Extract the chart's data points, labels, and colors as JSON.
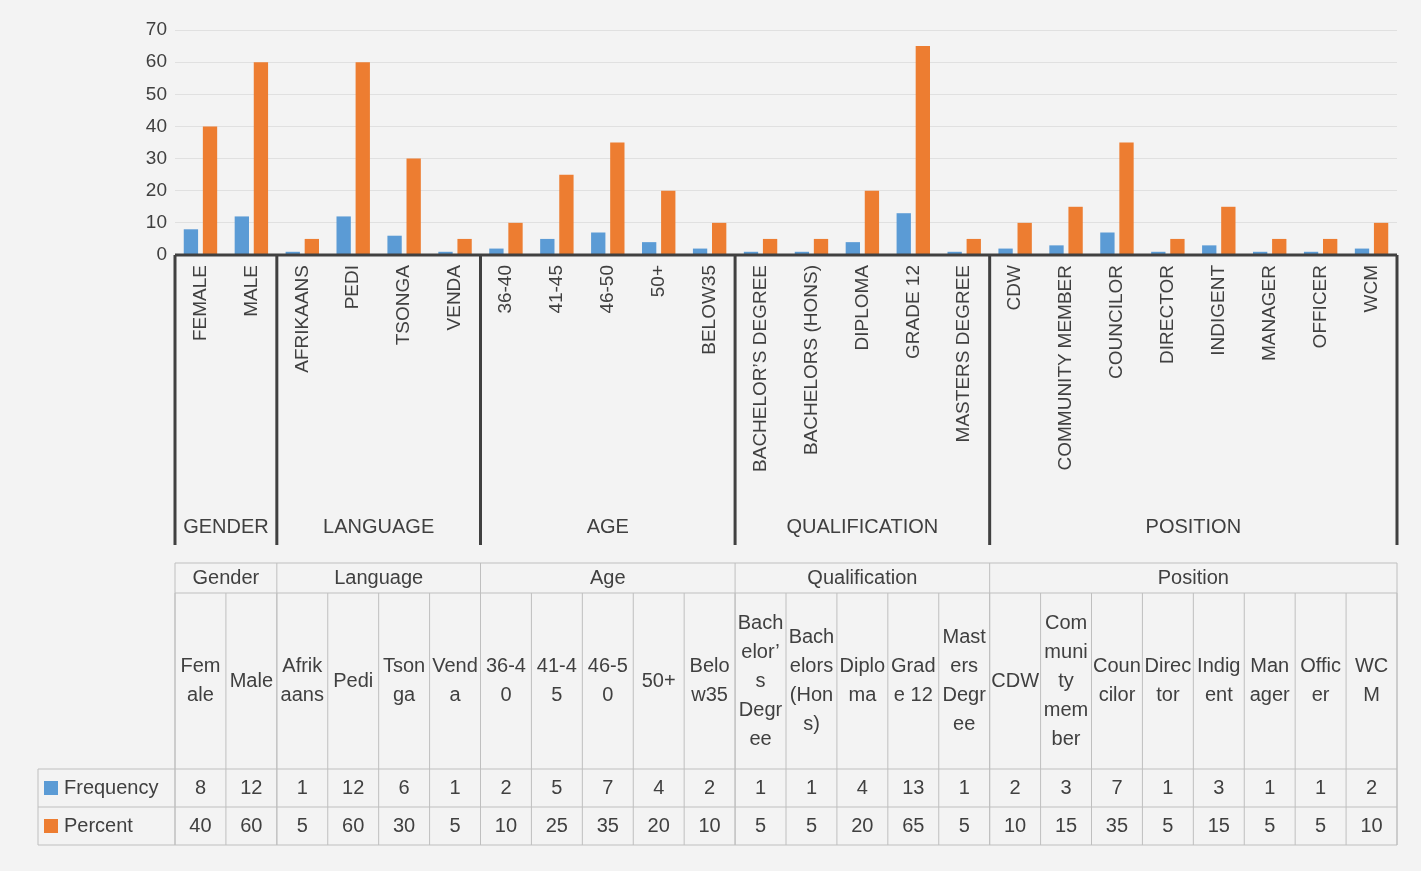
{
  "chart_data": {
    "type": "bar",
    "categories": [
      "FEMALE",
      "MALE",
      "AFRIKAANS",
      "PEDI",
      "TSONGA",
      "VENDA",
      "36-40",
      "41-45",
      "46-50",
      "50+",
      "BELOW35",
      "BACHELOR’S DEGREE",
      "BACHELORS (HONS)",
      "DIPLOMA",
      "GRADE 12",
      "MASTERS DEGREE",
      "CDW",
      "COMMUNITY MEMBER",
      "COUNCILOR",
      "DIRECTOR",
      "INDIGENT",
      "MANAGER",
      "OFFICER",
      "WCM"
    ],
    "series": [
      {
        "name": "Frequency",
        "color": "#5b9bd5",
        "values": [
          8,
          12,
          1,
          12,
          6,
          1,
          2,
          5,
          7,
          4,
          2,
          1,
          1,
          4,
          13,
          1,
          2,
          3,
          7,
          1,
          3,
          1,
          1,
          2
        ]
      },
      {
        "name": "Percent",
        "color": "#ed7d31",
        "values": [
          40,
          60,
          5,
          60,
          30,
          5,
          10,
          25,
          35,
          20,
          10,
          5,
          5,
          20,
          65,
          5,
          10,
          15,
          35,
          5,
          15,
          5,
          5,
          10
        ]
      }
    ],
    "ylim": [
      0,
      70
    ],
    "yticks": [
      0,
      10,
      20,
      30,
      40,
      50,
      60,
      70
    ],
    "grid": "y",
    "legend": "bottom",
    "data_labels": true,
    "annotations": [
      "GENDER",
      "LANGUAGE",
      "AGE",
      "QUALIFICATION",
      "POSITION",
      "Gender",
      "Language",
      "Age",
      "Qualification",
      "Position",
      "Female",
      "Male",
      "Afrikaans",
      "Pedi",
      "Tsonga",
      "Venda",
      "36-40",
      "41-45",
      "46-50",
      "50+",
      "Below35",
      "Bachelor’s Degree",
      "Bachelors (Hons)",
      "Diploma",
      "Grade 12",
      "Masters Degree",
      "CDW",
      "Community member",
      "Councilor",
      "Director",
      "Indigent",
      "Manager",
      "Officer",
      "WCM"
    ]
  }
}
